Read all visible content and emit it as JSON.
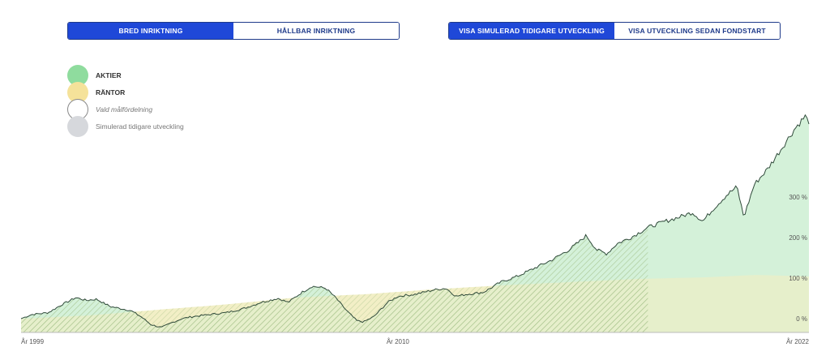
{
  "toggles_left": {
    "items": [
      "BRED INRIKTNING",
      "HÅLLBAR INRIKTNING"
    ],
    "active": 0
  },
  "toggles_right": {
    "items": [
      "VISA SIMULERAD TIDIGARE UTVECKLING",
      "VISA UTVECKLING SEDAN FONDSTART"
    ],
    "active": 0
  },
  "legend": [
    {
      "label": "AKTIER",
      "style": "bold",
      "color": "#8fdc9e"
    },
    {
      "label": "RÄNTOR",
      "style": "bold",
      "color": "#f5e29a"
    },
    {
      "label": "Vald målfördelning",
      "style": "italic",
      "color": "#ffffff"
    },
    {
      "label": "Simulerad tidigare utveckling",
      "style": "plain",
      "color": "#d6d8dc"
    }
  ],
  "colors": {
    "equity_fill": "#d4f1d9",
    "bond_fill": "#f1eec3",
    "line": "#2f4a3a",
    "axis": "#bbbbbb",
    "hatch": "#9ab97e",
    "accent_blue": "#1f48d8"
  },
  "chart_data": {
    "type": "area",
    "x_labels": [
      {
        "value": 1999,
        "text": "År 1999"
      },
      {
        "value": 2010,
        "text": "År 2010"
      },
      {
        "value": 2022,
        "text": "År 2022"
      }
    ],
    "xlim": [
      1999,
      2022
    ],
    "ylim": [
      -20,
      540
    ],
    "y_ticks": [
      {
        "value": 0,
        "text": "0 %"
      },
      {
        "value": 100,
        "text": "100 %"
      },
      {
        "value": 200,
        "text": "200 %"
      },
      {
        "value": 300,
        "text": "300 %"
      }
    ],
    "simulated_until": 2017.3,
    "series": [
      {
        "name": "AKTIER",
        "values": [
          [
            1999.0,
            0
          ],
          [
            1999.3,
            10
          ],
          [
            1999.8,
            15
          ],
          [
            2000.2,
            35
          ],
          [
            2000.6,
            52
          ],
          [
            2000.9,
            45
          ],
          [
            2001.2,
            48
          ],
          [
            2001.6,
            30
          ],
          [
            2001.9,
            25
          ],
          [
            2002.2,
            20
          ],
          [
            2002.5,
            5
          ],
          [
            2002.8,
            -15
          ],
          [
            2003.1,
            -22
          ],
          [
            2003.4,
            -10
          ],
          [
            2003.7,
            0
          ],
          [
            2004.0,
            5
          ],
          [
            2004.5,
            10
          ],
          [
            2005.0,
            15
          ],
          [
            2005.5,
            25
          ],
          [
            2006.0,
            40
          ],
          [
            2006.5,
            50
          ],
          [
            2006.8,
            40
          ],
          [
            2007.2,
            65
          ],
          [
            2007.5,
            80
          ],
          [
            2007.9,
            75
          ],
          [
            2008.2,
            50
          ],
          [
            2008.5,
            20
          ],
          [
            2008.8,
            -5
          ],
          [
            2009.0,
            -8
          ],
          [
            2009.3,
            5
          ],
          [
            2009.7,
            40
          ],
          [
            2010.0,
            55
          ],
          [
            2010.5,
            60
          ],
          [
            2011.0,
            70
          ],
          [
            2011.4,
            75
          ],
          [
            2011.7,
            55
          ],
          [
            2012.0,
            60
          ],
          [
            2012.5,
            65
          ],
          [
            2013.0,
            90
          ],
          [
            2013.5,
            105
          ],
          [
            2014.0,
            125
          ],
          [
            2014.5,
            145
          ],
          [
            2015.0,
            170
          ],
          [
            2015.3,
            190
          ],
          [
            2015.5,
            205
          ],
          [
            2015.8,
            170
          ],
          [
            2016.1,
            160
          ],
          [
            2016.4,
            185
          ],
          [
            2016.8,
            200
          ],
          [
            2017.3,
            225
          ],
          [
            2017.8,
            240
          ],
          [
            2018.2,
            250
          ],
          [
            2018.6,
            262
          ],
          [
            2018.9,
            240
          ],
          [
            2019.2,
            270
          ],
          [
            2019.6,
            305
          ],
          [
            2019.9,
            325
          ],
          [
            2020.1,
            250
          ],
          [
            2020.4,
            330
          ],
          [
            2020.8,
            370
          ],
          [
            2021.2,
            420
          ],
          [
            2021.6,
            470
          ],
          [
            2021.9,
            500
          ],
          [
            2022.0,
            480
          ]
        ]
      },
      {
        "name": "RÄNTOR",
        "values": [
          [
            1999.0,
            0
          ],
          [
            2001.0,
            8
          ],
          [
            2003.0,
            22
          ],
          [
            2005.0,
            35
          ],
          [
            2007.0,
            52
          ],
          [
            2009.0,
            60
          ],
          [
            2011.0,
            72
          ],
          [
            2013.0,
            82
          ],
          [
            2015.0,
            90
          ],
          [
            2017.0,
            98
          ],
          [
            2019.0,
            102
          ],
          [
            2020.5,
            108
          ],
          [
            2022.0,
            104
          ]
        ]
      }
    ]
  }
}
